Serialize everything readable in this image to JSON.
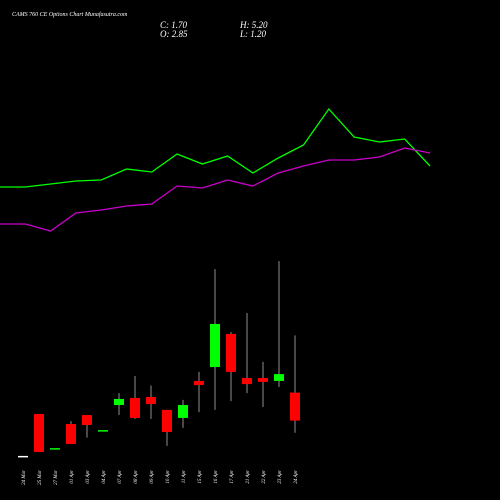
{
  "chart_data": {
    "type": "candlestick",
    "title": "CAMS 760 CE Options Chart Munafasutra.com",
    "ohlc_labels": [
      "C: 1.70",
      "H: 5.20",
      "O: 2.85",
      "L: 1.20"
    ],
    "categories": [
      "24 Mar",
      "25 Mar",
      "27 Mar",
      "01 Apr",
      "03 Apr",
      "04 Apr",
      "07 Apr",
      "08 Apr",
      "09 Apr",
      "10 Apr",
      "11 Apr",
      "15 Apr",
      "16 Apr",
      "17 Apr",
      "21 Apr",
      "22 Apr",
      "23 Apr",
      "24 Apr"
    ],
    "open": [
      0.25,
      1.97,
      0.57,
      1.56,
      1.93,
      1.31,
      2.34,
      2.63,
      2.67,
      2.14,
      1.81,
      3.33,
      3.9,
      5.26,
      3.45,
      3.45,
      3.33,
      2.85
    ],
    "high": [
      0.25,
      1.97,
      0.57,
      1.68,
      1.93,
      1.31,
      2.83,
      3.53,
      3.14,
      2.14,
      2.55,
      3.7,
      7.92,
      5.34,
      6.12,
      4.11,
      8.25,
      5.2
    ],
    "low": [
      0.25,
      0.41,
      0.57,
      0.74,
      1.0,
      1.31,
      1.93,
      1.77,
      1.77,
      0.66,
      1.4,
      2.05,
      2.14,
      2.5,
      2.83,
      2.26,
      3.08,
      1.2
    ],
    "close": [
      0.25,
      0.41,
      0.57,
      0.74,
      1.52,
      1.31,
      2.59,
      1.81,
      2.38,
      1.23,
      2.34,
      3.16,
      5.67,
      3.7,
      3.2,
      3.29,
      3.61,
      1.7
    ],
    "up_color": "#00ff00",
    "down_color": "#ff0000",
    "wick_color": "#cccccc",
    "ylim": [
      0,
      9.5
    ],
    "series": [
      {
        "color": "#00ff00",
        "axis": "y2",
        "values": [
          2.92,
          2.92,
          3.04,
          3.16,
          3.2,
          3.64,
          3.52,
          4.24,
          3.84,
          4.16,
          3.48,
          4.08,
          4.6,
          6.04,
          4.92,
          4.72,
          4.84,
          3.76
        ]
      },
      {
        "color": "#cc00cc",
        "axis": "y2",
        "values": [
          1.44,
          1.44,
          1.16,
          1.88,
          2.0,
          2.16,
          2.24,
          2.96,
          2.88,
          3.2,
          2.96,
          3.48,
          3.76,
          4.0,
          4.0,
          4.12,
          4.48,
          4.28
        ]
      }
    ],
    "y2lim": [
      0,
      10
    ]
  }
}
